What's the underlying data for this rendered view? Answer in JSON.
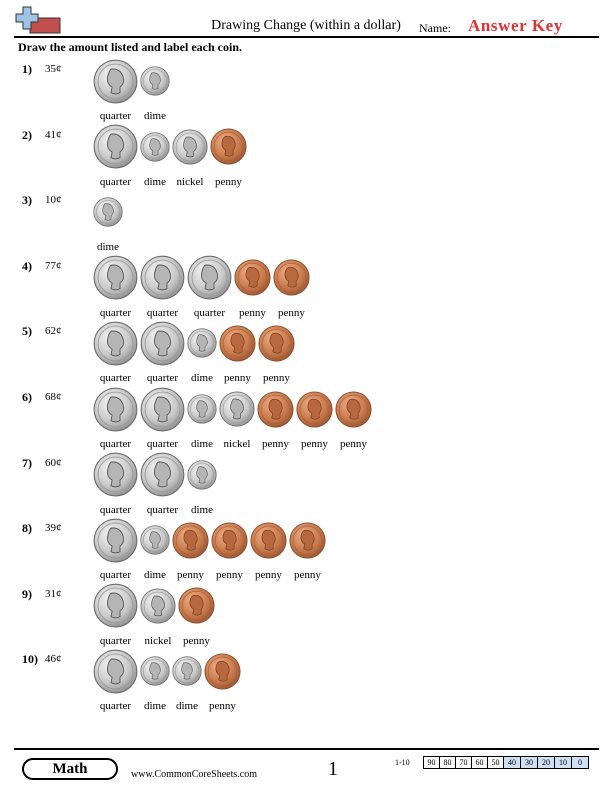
{
  "header": {
    "title": "Drawing Change (within a dollar)",
    "name_label": "Name:",
    "answer_key": "Answer Key"
  },
  "instructions": "Draw the amount listed and label each coin.",
  "colors": {
    "answer_key": "#e03030",
    "logo_blue": "#9ec3e6",
    "logo_red": "#c0504d",
    "score_highlight": "#cfe0f5",
    "penny": "#c97b4c",
    "silver": "#c9c9c9"
  },
  "problems": [
    {
      "number": "1)",
      "amount": "35¢",
      "coins": [
        "quarter",
        "dime"
      ]
    },
    {
      "number": "2)",
      "amount": "41¢",
      "coins": [
        "quarter",
        "dime",
        "nickel",
        "penny"
      ]
    },
    {
      "number": "3)",
      "amount": "10¢",
      "coins": [
        "dime"
      ]
    },
    {
      "number": "4)",
      "amount": "77¢",
      "coins": [
        "quarter",
        "quarter",
        "quarter",
        "penny",
        "penny"
      ]
    },
    {
      "number": "5)",
      "amount": "62¢",
      "coins": [
        "quarter",
        "quarter",
        "dime",
        "penny",
        "penny"
      ]
    },
    {
      "number": "6)",
      "amount": "68¢",
      "coins": [
        "quarter",
        "quarter",
        "dime",
        "nickel",
        "penny",
        "penny",
        "penny"
      ]
    },
    {
      "number": "7)",
      "amount": "60¢",
      "coins": [
        "quarter",
        "quarter",
        "dime"
      ]
    },
    {
      "number": "8)",
      "amount": "39¢",
      "coins": [
        "quarter",
        "dime",
        "penny",
        "penny",
        "penny",
        "penny"
      ]
    },
    {
      "number": "9)",
      "amount": "31¢",
      "coins": [
        "quarter",
        "nickel",
        "penny"
      ]
    },
    {
      "number": "10)",
      "amount": "46¢",
      "coins": [
        "quarter",
        "dime",
        "dime",
        "penny"
      ]
    }
  ],
  "footer": {
    "subject": "Math",
    "website": "www.CommonCoreSheets.com",
    "page": "1",
    "score_range": "1-10",
    "scores": [
      "90",
      "80",
      "70",
      "60",
      "50",
      "40",
      "30",
      "20",
      "10",
      "0"
    ],
    "highlighted_scores": [
      "40",
      "30",
      "20",
      "10",
      "0"
    ]
  }
}
